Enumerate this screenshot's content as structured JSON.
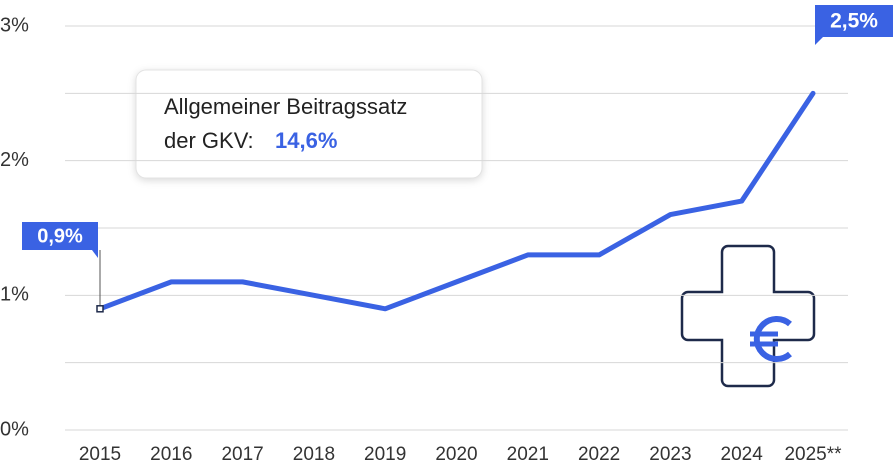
{
  "chart_data": {
    "type": "line",
    "categories": [
      "2015",
      "2016",
      "2017",
      "2018",
      "2019",
      "2020",
      "2021",
      "2022",
      "2023",
      "2024",
      "2025**"
    ],
    "series": [
      {
        "color": "#3a62e3",
        "values": [
          0.9,
          1.1,
          1.1,
          1.0,
          0.9,
          1.1,
          1.3,
          1.3,
          1.6,
          1.7,
          2.5
        ],
        "value_labels": [
          "0,9%",
          null,
          null,
          null,
          null,
          null,
          null,
          null,
          null,
          null,
          "2,5%"
        ]
      }
    ],
    "ylim": [
      0,
      3
    ],
    "yticks": [
      {
        "value": 0,
        "label": "0%"
      },
      {
        "value": 1,
        "label": "1%"
      },
      {
        "value": 2,
        "label": "2%"
      },
      {
        "value": 3,
        "label": "3%"
      }
    ],
    "grid": true,
    "minor_grid": true,
    "annotation": {
      "lines": [
        "Allgemeiner Beitragssatz",
        "der GKV:"
      ],
      "highlight": "14,6%"
    }
  }
}
